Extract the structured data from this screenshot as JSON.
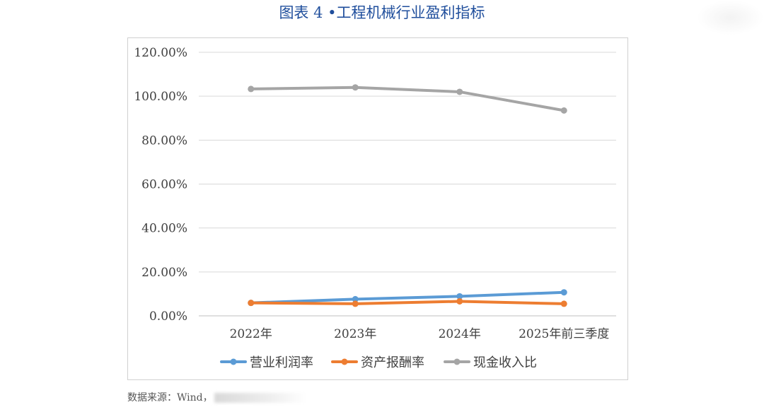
{
  "figure": {
    "title": "图表 4 •工程机械行业盈利指标",
    "source": "数据来源：Wind，"
  },
  "chart_data": {
    "type": "line",
    "title": "",
    "xlabel": "",
    "ylabel": "",
    "categories": [
      "2022年",
      "2023年",
      "2024年",
      "2025年前三季度"
    ],
    "ylim": [
      0,
      120
    ],
    "yticks": [
      "0.00%",
      "20.00%",
      "40.00%",
      "60.00%",
      "80.00%",
      "100.00%",
      "120.00%"
    ],
    "grid": true,
    "legend_position": "bottom",
    "series": [
      {
        "name": "营业利润率",
        "color": "#5b9bd5",
        "values": [
          5.9,
          7.6,
          8.9,
          10.7
        ]
      },
      {
        "name": "资产报酬率",
        "color": "#ed7d31",
        "values": [
          5.9,
          5.5,
          6.6,
          5.5
        ]
      },
      {
        "name": "现金收入比",
        "color": "#a5a5a5",
        "values": [
          103.3,
          104.0,
          102.0,
          93.5
        ]
      }
    ]
  }
}
